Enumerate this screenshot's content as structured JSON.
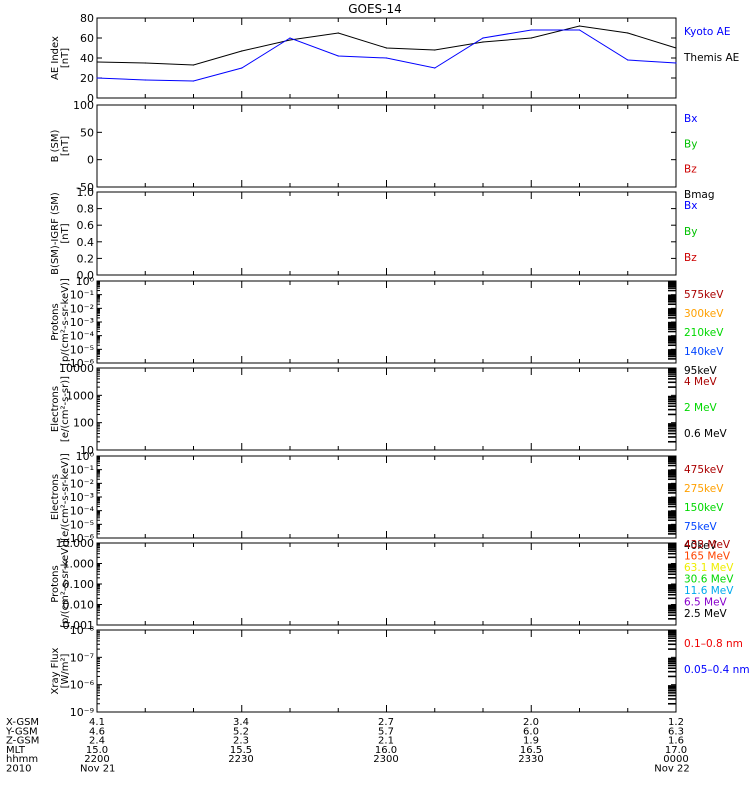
{
  "title": "GOES-14",
  "colors": {
    "black": "#000000",
    "blue": "#0000ff",
    "green": "#00c000",
    "red": "#cc0000",
    "darkred": "#aa0000",
    "orange": "#ffa000",
    "green2": "#00d800",
    "blue2": "#0044ff",
    "midgreen": "#00cc88",
    "cyan": "#00aaee",
    "purple": "#8800cc",
    "yellow": "#eeee00",
    "orangered": "#ff4400",
    "brightred": "#ee0000"
  },
  "panels": [
    {
      "id": "ae",
      "ylabel": [
        "AE Index",
        "[nT]"
      ],
      "ticks": [
        "80",
        "60",
        "40",
        "20",
        "0"
      ],
      "scale": "linear",
      "legend": [
        {
          "text": "Kyoto AE",
          "color": "#0000ff"
        },
        {
          "text": "Themis AE",
          "color": "#000000"
        }
      ]
    },
    {
      "id": "b",
      "ylabel": [
        "B (SM)",
        "[nT]"
      ],
      "ticks": [
        "100",
        "50",
        "0",
        "-50"
      ],
      "scale": "linear",
      "legend": [
        {
          "text": "Bx",
          "color": "#0000ff"
        },
        {
          "text": "By",
          "color": "#00c000"
        },
        {
          "text": "Bz",
          "color": "#cc0000"
        },
        {
          "text": "Bmag",
          "color": "#000000"
        }
      ]
    },
    {
      "id": "bdiff",
      "ylabel": [
        "B(SM)-IGRF (SM)",
        "[nT]"
      ],
      "ticks": [
        "1.0",
        "0.8",
        "0.6",
        "0.4",
        "0.2",
        "0.0"
      ],
      "scale": "linear",
      "legend": [
        {
          "text": "Bx",
          "color": "#0000ff"
        },
        {
          "text": "By",
          "color": "#00c000"
        },
        {
          "text": "Bz",
          "color": "#cc0000"
        }
      ]
    },
    {
      "id": "protons1",
      "ylabel": [
        "Protons",
        "[p/(cm²-s-sr-keV)]"
      ],
      "ticks": [
        "10⁰",
        "10⁻¹",
        "10⁻²",
        "10⁻³",
        "10⁻⁴",
        "10⁻⁵",
        "10⁻⁶"
      ],
      "scale": "log",
      "legend": [
        {
          "text": "575keV",
          "color": "#aa0000"
        },
        {
          "text": "300keV",
          "color": "#ffa000"
        },
        {
          "text": "210keV",
          "color": "#00d800"
        },
        {
          "text": "140keV",
          "color": "#0044ff"
        },
        {
          "text": "95keV",
          "color": "#000000"
        }
      ]
    },
    {
      "id": "electrons1",
      "ylabel": [
        "Electrons",
        "[e/(cm²-s-sr)]"
      ],
      "ticks": [
        "10000",
        "1000",
        "100",
        "10"
      ],
      "scale": "log",
      "legend": [
        {
          "text": "4 MeV",
          "color": "#aa0000"
        },
        {
          "text": "2 MeV",
          "color": "#00d800"
        },
        {
          "text": "0.6 MeV",
          "color": "#000000"
        }
      ]
    },
    {
      "id": "electrons2",
      "ylabel": [
        "Electrons",
        "[e/(cm²-s-sr-keV)]"
      ],
      "ticks": [
        "10⁰",
        "10⁻¹",
        "10⁻²",
        "10⁻³",
        "10⁻⁴",
        "10⁻⁵",
        "10⁻⁶"
      ],
      "scale": "log",
      "legend": [
        {
          "text": "475keV",
          "color": "#aa0000"
        },
        {
          "text": "275keV",
          "color": "#ffa000"
        },
        {
          "text": "150keV",
          "color": "#00d800"
        },
        {
          "text": "75keV",
          "color": "#0044ff"
        },
        {
          "text": "40keV",
          "color": "#000000"
        }
      ]
    },
    {
      "id": "protons2",
      "ylabel": [
        "Protons",
        "[p/(cm²-s-sr-keV)]"
      ],
      "ticks": [
        "10.000",
        "1.000",
        "0.100",
        "0.010",
        "0.001"
      ],
      "scale": "log",
      "legend": [
        {
          "text": "433 MeV",
          "color": "#aa0000"
        },
        {
          "text": "165 MeV",
          "color": "#ff4400"
        },
        {
          "text": "63.1 MeV",
          "color": "#eeee00"
        },
        {
          "text": "30.6 MeV",
          "color": "#00d800"
        },
        {
          "text": "11.6 MeV",
          "color": "#00aaee"
        },
        {
          "text": "6.5 MeV",
          "color": "#8800cc"
        },
        {
          "text": "2.5 MeV",
          "color": "#000000"
        }
      ]
    },
    {
      "id": "xray",
      "ylabel": [
        "Xray Flux",
        "[W/m²]"
      ],
      "ticks": [
        "10⁻⁸",
        "10⁻⁷",
        "10⁻⁶",
        "10⁻⁹"
      ],
      "scale": "log",
      "legend": [
        {
          "text": "0.1–0.8 nm",
          "color": "#ee0000"
        },
        {
          "text": "0.05–0.4 nm",
          "color": "#0000ff"
        }
      ]
    }
  ],
  "footer": {
    "rows": [
      {
        "label": "X-GSM",
        "values": [
          "4.1",
          "3.4",
          "2.7",
          "2.0",
          "1.2"
        ]
      },
      {
        "label": "Y-GSM",
        "values": [
          "4.6",
          "5.2",
          "5.7",
          "6.0",
          "6.3"
        ]
      },
      {
        "label": "Z-GSM",
        "values": [
          "2.4",
          "2.3",
          "2.1",
          "1.9",
          "1.6"
        ]
      },
      {
        "label": "MLT",
        "values": [
          "15.0",
          "15.5",
          "16.0",
          "16.5",
          "17.0"
        ]
      },
      {
        "label": "hhmm",
        "values": [
          "2200",
          "2230",
          "2300",
          "2330",
          "0000"
        ]
      },
      {
        "label": "2010",
        "values": [
          "Nov 21",
          "",
          "",
          "",
          "Nov 22"
        ]
      }
    ]
  },
  "chart_data": {
    "type": "line",
    "title": "GOES-14",
    "x": [
      "2200",
      "2210",
      "2220",
      "2230",
      "2240",
      "2250",
      "2300",
      "2310",
      "2320",
      "2330",
      "2340",
      "2350",
      "0000"
    ],
    "series": [
      {
        "name": "Themis AE",
        "color": "#000000",
        "panel": "ae",
        "values": [
          36,
          35,
          33,
          47,
          58,
          65,
          50,
          48,
          56,
          60,
          72,
          65,
          50
        ]
      },
      {
        "name": "Kyoto AE",
        "color": "#0000ff",
        "panel": "ae",
        "values": [
          20,
          18,
          17,
          30,
          60,
          42,
          40,
          30,
          60,
          68,
          68,
          38,
          35
        ]
      }
    ],
    "ylim": [
      0,
      80
    ],
    "xlabel": "hhmm",
    "ylabel": "AE Index [nT]"
  }
}
